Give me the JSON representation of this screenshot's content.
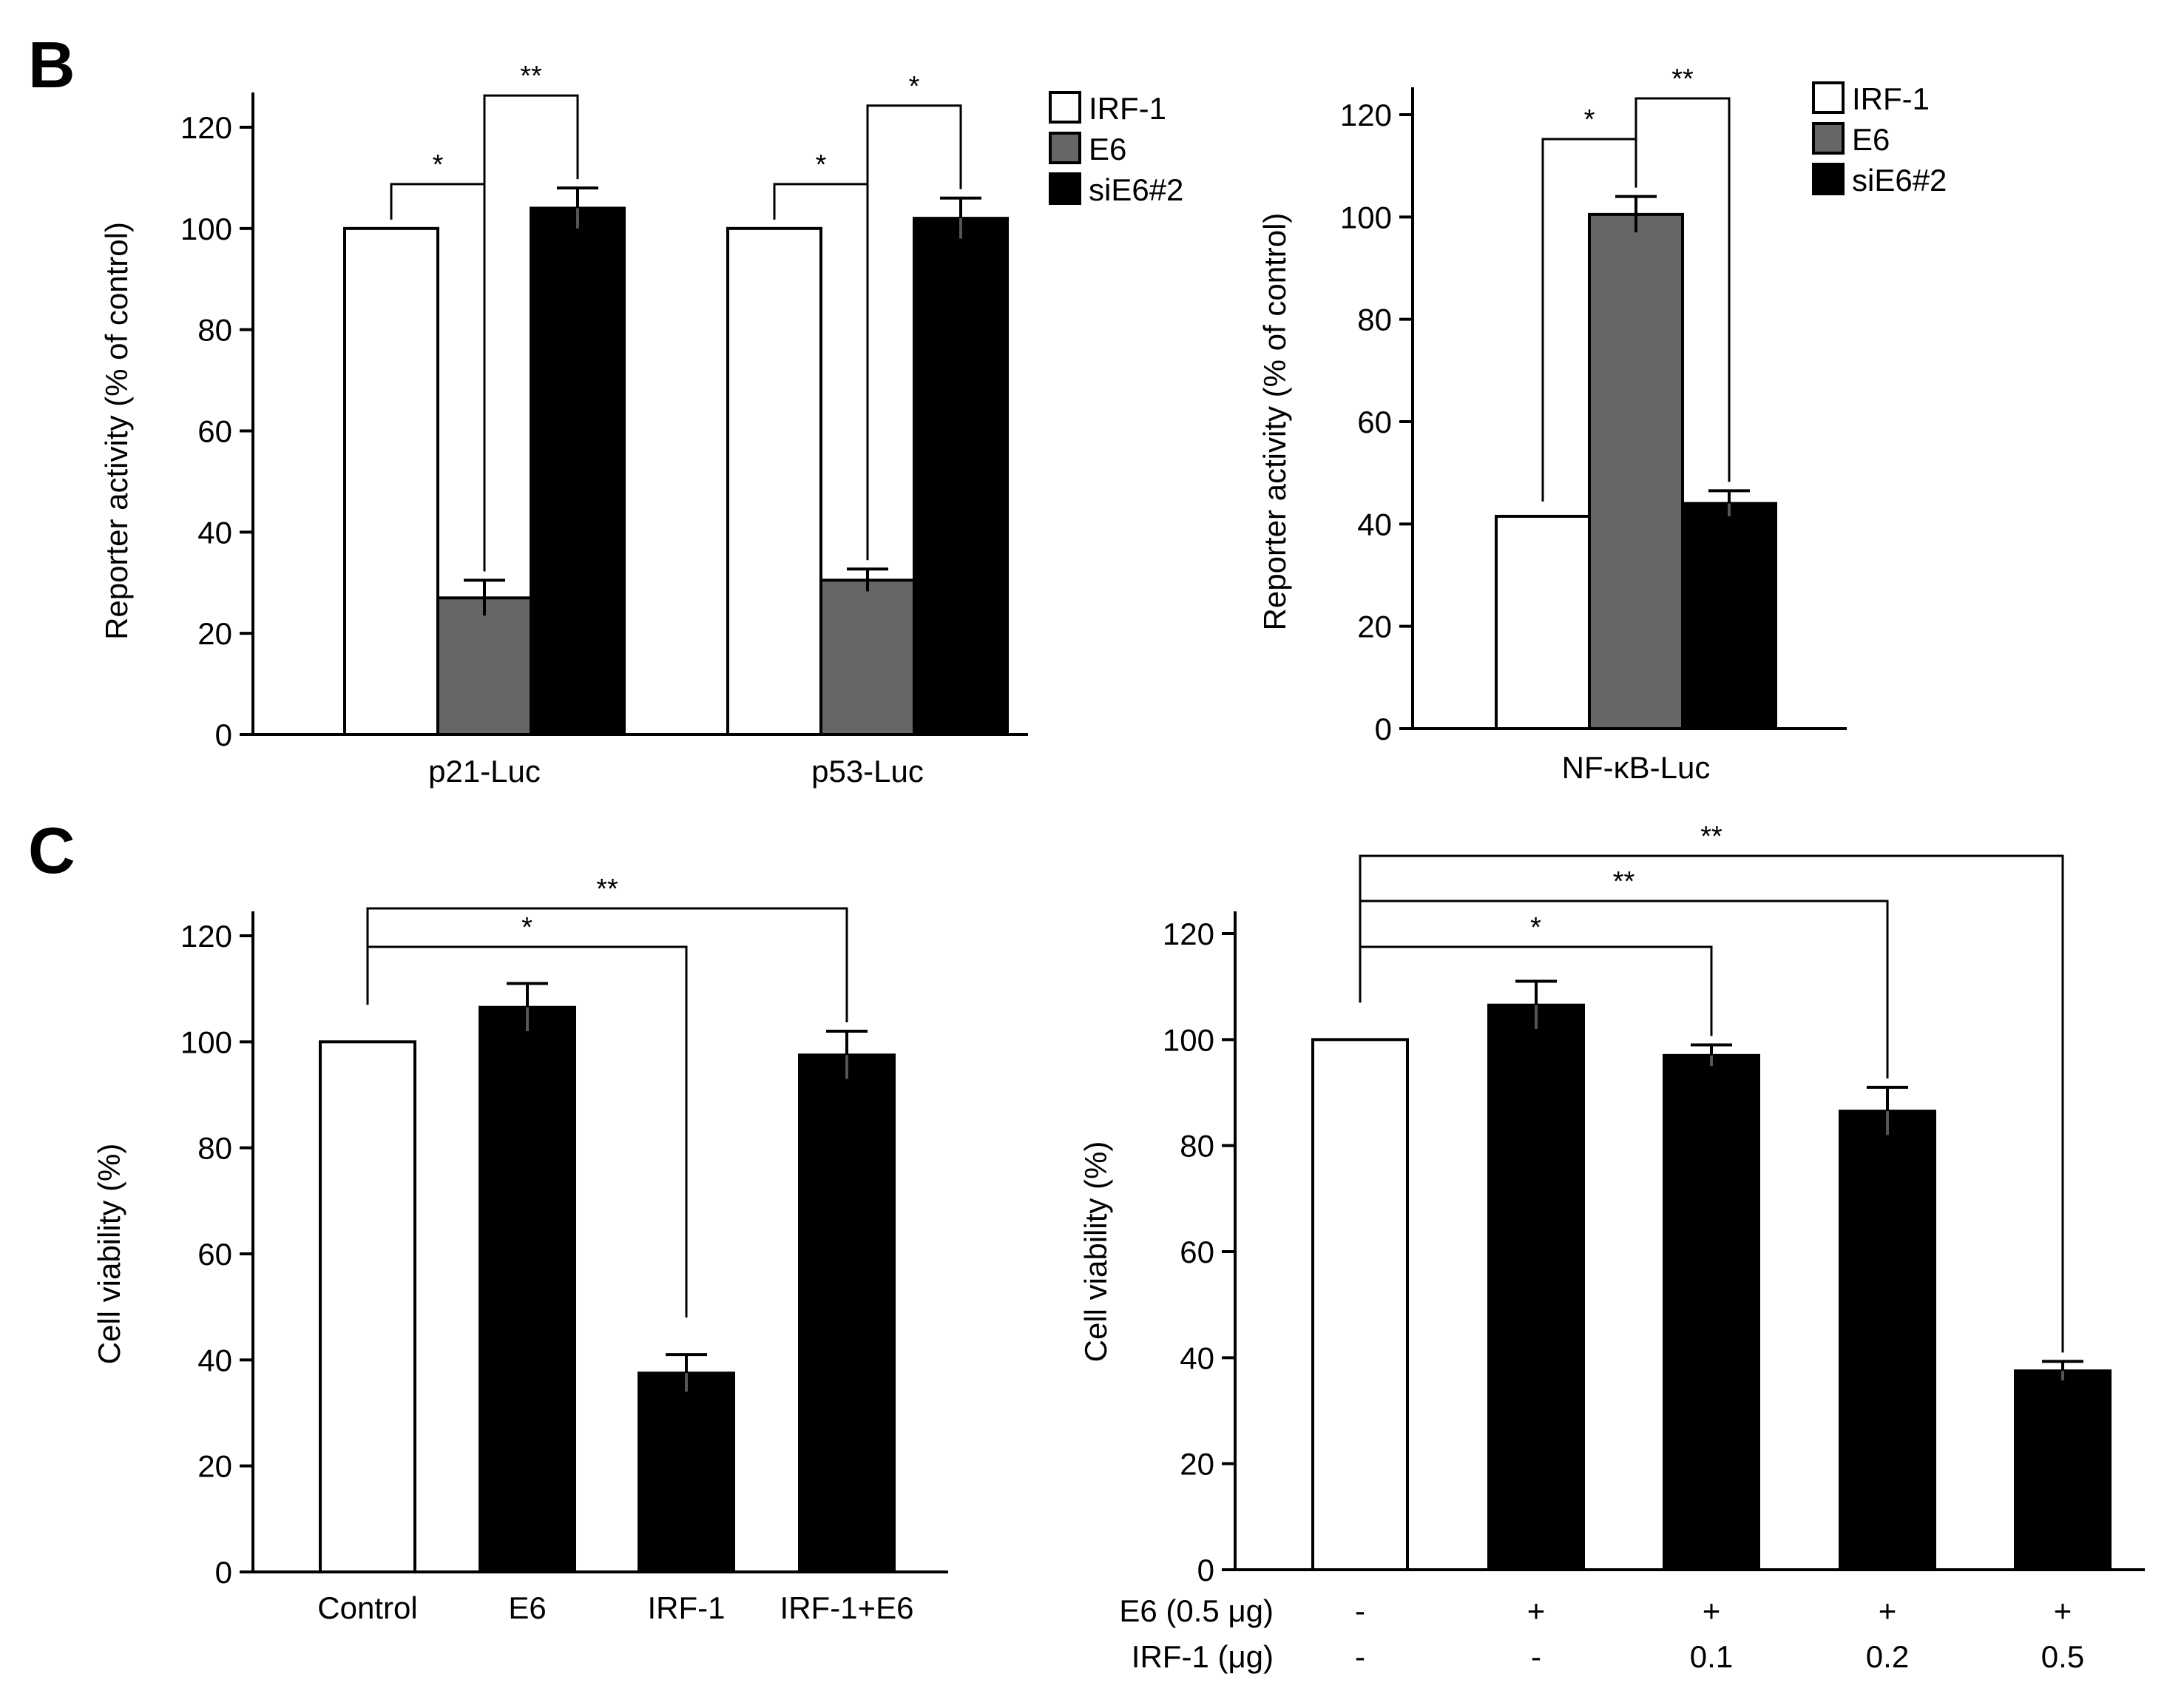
{
  "panels": {
    "B": "B",
    "C": "C"
  },
  "chart_data": [
    {
      "id": "B-left",
      "type": "bar",
      "panel": "B",
      "title": "",
      "xlabel": "",
      "ylabel": "Reporter activity (% of control)",
      "ylim": [
        0,
        120
      ],
      "yticks": [
        "0",
        "20",
        "40",
        "60",
        "80",
        "100",
        "120"
      ],
      "categories": [
        "p21-Luc",
        "p53-Luc"
      ],
      "series": [
        {
          "name": "IRF-1",
          "color": "#ffffff",
          "values": [
            100,
            100
          ],
          "errors": [
            0,
            0
          ]
        },
        {
          "name": "E6",
          "color": "#666666",
          "values": [
            27,
            30.5
          ],
          "errors": [
            3.5,
            2.2
          ]
        },
        {
          "name": "siE6#2",
          "color": "#000000",
          "values": [
            104,
            102
          ],
          "errors": [
            4,
            4
          ]
        }
      ],
      "legend": [
        "IRF-1",
        "E6",
        "siE6#2"
      ],
      "significance": [
        {
          "category": 0,
          "from": 0,
          "to": 1,
          "label": "*"
        },
        {
          "category": 0,
          "from": 1,
          "to": 2,
          "label": "**"
        },
        {
          "category": 1,
          "from": 0,
          "to": 1,
          "label": "*"
        },
        {
          "category": 1,
          "from": 1,
          "to": 2,
          "label": "*"
        }
      ]
    },
    {
      "id": "B-right",
      "type": "bar",
      "panel": "B",
      "title": "",
      "xlabel": "",
      "ylabel": "Reporter activity (% of control)",
      "ylim": [
        0,
        120
      ],
      "yticks": [
        "0",
        "20",
        "40",
        "60",
        "80",
        "100",
        "120"
      ],
      "categories": [
        "NF-κB-Luc"
      ],
      "series": [
        {
          "name": "IRF-1",
          "color": "#ffffff",
          "values": [
            41.5
          ],
          "errors": [
            0
          ]
        },
        {
          "name": "E6",
          "color": "#666666",
          "values": [
            100.5
          ],
          "errors": [
            3.5
          ]
        },
        {
          "name": "siE6#2",
          "color": "#000000",
          "values": [
            44
          ],
          "errors": [
            2.5
          ]
        }
      ],
      "legend": [
        "IRF-1",
        "E6",
        "siE6#2"
      ],
      "significance": [
        {
          "category": 0,
          "from": 0,
          "to": 1,
          "label": "*"
        },
        {
          "category": 0,
          "from": 1,
          "to": 2,
          "label": "**"
        }
      ]
    },
    {
      "id": "C-left",
      "type": "bar",
      "panel": "C",
      "title": "",
      "xlabel": "",
      "ylabel": "Cell viability (%)",
      "ylim": [
        0,
        120
      ],
      "yticks": [
        "0",
        "20",
        "40",
        "60",
        "80",
        "100",
        "120"
      ],
      "categories": [
        "Control",
        "E6",
        "IRF-1",
        "IRF-1+E6"
      ],
      "values": [
        100,
        106.5,
        37.5,
        97.5
      ],
      "errors": [
        0,
        4.5,
        3.5,
        4.5
      ],
      "colors": [
        "#ffffff",
        "#000000",
        "#000000",
        "#000000"
      ],
      "significance": [
        {
          "from": 0,
          "to": 2,
          "label": "*"
        },
        {
          "from": 0,
          "to": 3,
          "label": "**"
        }
      ]
    },
    {
      "id": "C-right",
      "type": "bar",
      "panel": "C",
      "title": "",
      "xlabel": "",
      "ylabel": "Cell viability (%)",
      "ylim": [
        0,
        120
      ],
      "yticks": [
        "0",
        "20",
        "40",
        "60",
        "80",
        "100",
        "120"
      ],
      "values": [
        100,
        106.5,
        97,
        86.5,
        37.5
      ],
      "errors": [
        0,
        4.5,
        2,
        4.5,
        1.8
      ],
      "colors": [
        "#ffffff",
        "#000000",
        "#000000",
        "#000000",
        "#000000"
      ],
      "row_labels": [
        "E6 (0.5 μg)",
        "IRF-1 (μg)"
      ],
      "rows": [
        [
          "-",
          "+",
          "+",
          "+",
          "+"
        ],
        [
          "-",
          "-",
          "0.1",
          "0.2",
          "0.5"
        ]
      ],
      "significance": [
        {
          "from": 0,
          "to": 2,
          "label": "*"
        },
        {
          "from": 0,
          "to": 3,
          "label": "**"
        },
        {
          "from": 0,
          "to": 4,
          "label": "**"
        }
      ]
    }
  ]
}
